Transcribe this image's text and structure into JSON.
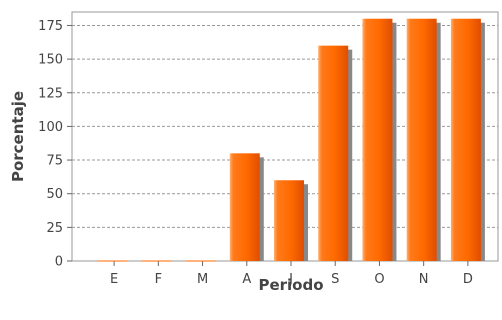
{
  "chart_data": {
    "type": "bar",
    "title": "",
    "xlabel": "Periodo",
    "ylabel": "Porcentaje",
    "categories": [
      "E",
      "F",
      "M",
      "A",
      "J",
      "S",
      "O",
      "N",
      "D"
    ],
    "values": [
      0,
      0,
      0,
      80,
      60,
      160,
      180,
      180,
      180
    ],
    "ylim": [
      0,
      185
    ],
    "yticks": [
      0,
      25,
      50,
      75,
      100,
      125,
      150,
      175
    ],
    "grid": true,
    "bar_color": "#ff6a00",
    "shadow_color": "#888888"
  }
}
